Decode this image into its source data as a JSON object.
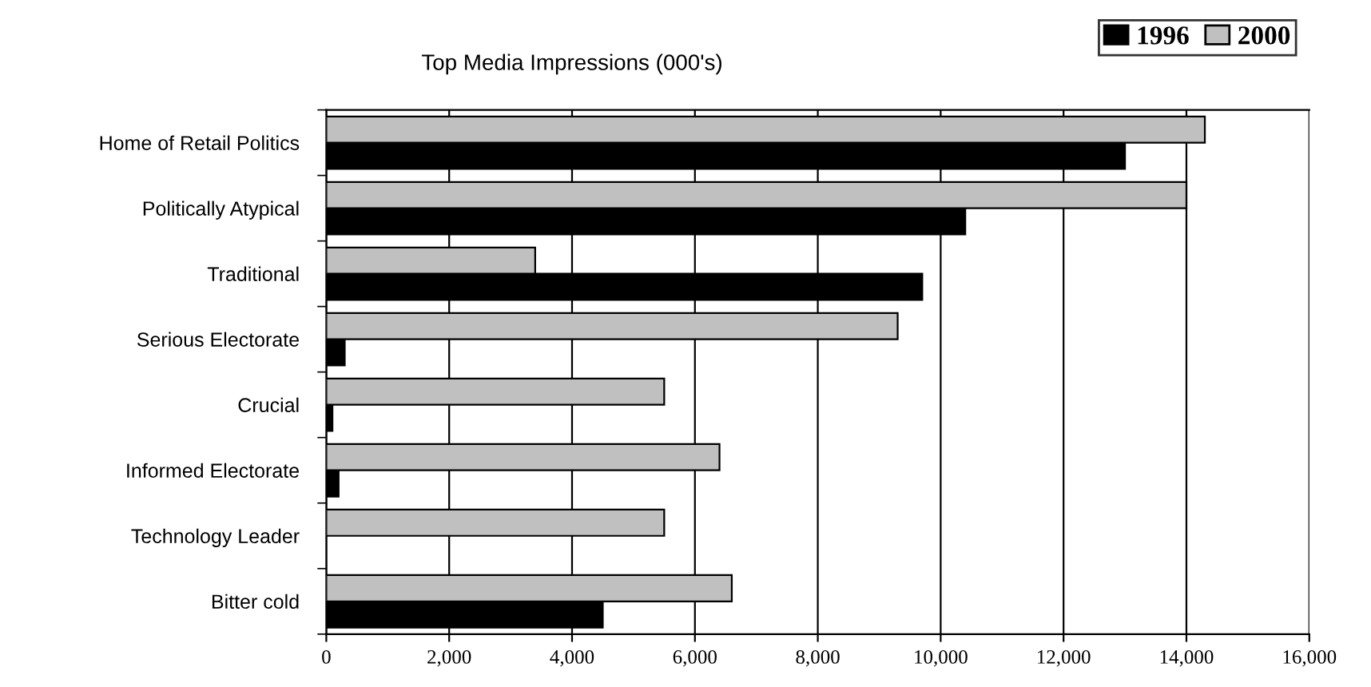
{
  "chart_data": {
    "type": "bar",
    "orientation": "horizontal",
    "title": "Top Media Impressions (000's)",
    "categories": [
      "Home of Retail Politics",
      "Politically Atypical",
      "Traditional",
      "Serious Electorate",
      "Crucial",
      "Informed Electorate",
      "Technology Leader",
      "Bitter cold"
    ],
    "series": [
      {
        "name": "1996",
        "color": "#000000",
        "values": [
          13000,
          10400,
          9700,
          300,
          100,
          200,
          null,
          4500
        ]
      },
      {
        "name": "2000",
        "color": "#c0c0c0",
        "values": [
          14300,
          14000,
          3400,
          9300,
          5500,
          6400,
          5500,
          6600
        ]
      }
    ],
    "xlim": [
      0,
      16000
    ],
    "xticks": [
      {
        "value": 0,
        "label": "0"
      },
      {
        "value": 2000,
        "label": "2,000"
      },
      {
        "value": 4000,
        "label": "4,000"
      },
      {
        "value": 6000,
        "label": "6,000"
      },
      {
        "value": 8000,
        "label": "8,000"
      },
      {
        "value": 10000,
        "label": "10,000"
      },
      {
        "value": 12000,
        "label": "12,000"
      },
      {
        "value": 14000,
        "label": "14,000"
      },
      {
        "value": 16000,
        "label": "16,000"
      }
    ],
    "grid": "x",
    "legend": "top right"
  }
}
